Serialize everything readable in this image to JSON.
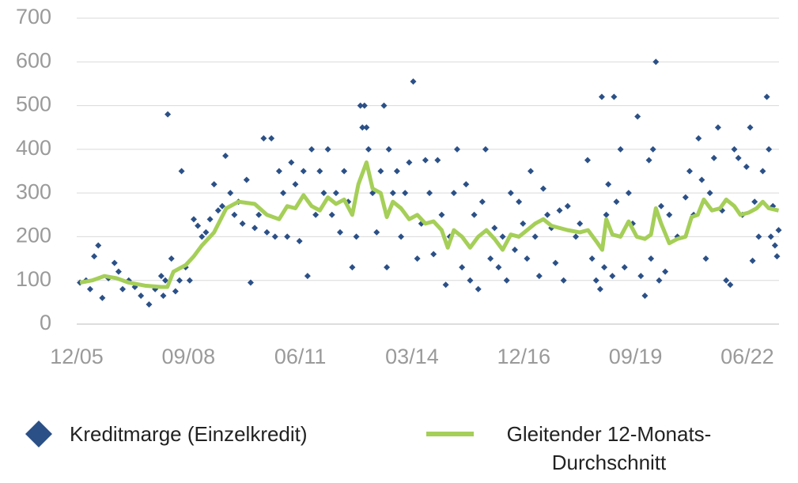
{
  "chart_data": {
    "type": "scatter",
    "series": [
      {
        "name": "Kreditmarge (Einzelkredit)",
        "type": "scatter",
        "color": "#2b5087",
        "x": [
          2006.0,
          2006.15,
          2006.25,
          2006.35,
          2006.45,
          2006.55,
          2006.7,
          2006.85,
          2006.95,
          2007.05,
          2007.2,
          2007.35,
          2007.5,
          2007.7,
          2007.85,
          2008.0,
          2008.05,
          2008.1,
          2008.16,
          2008.25,
          2008.35,
          2008.45,
          2008.5,
          2008.6,
          2008.7,
          2008.8,
          2008.9,
          2009.0,
          2009.1,
          2009.2,
          2009.3,
          2009.4,
          2009.5,
          2009.58,
          2009.7,
          2009.8,
          2009.9,
          2010.0,
          2010.1,
          2010.2,
          2010.3,
          2010.4,
          2010.52,
          2010.6,
          2010.71,
          2010.8,
          2010.9,
          2011.0,
          2011.1,
          2011.2,
          2011.3,
          2011.4,
          2011.5,
          2011.6,
          2011.7,
          2011.8,
          2011.9,
          2012.0,
          2012.1,
          2012.2,
          2012.3,
          2012.4,
          2012.5,
          2012.6,
          2012.7,
          2012.8,
          2012.9,
          2012.95,
          2013.0,
          2013.05,
          2013.1,
          2013.2,
          2013.3,
          2013.4,
          2013.48,
          2013.55,
          2013.6,
          2013.7,
          2013.8,
          2013.9,
          2014.0,
          2014.1,
          2014.2,
          2014.3,
          2014.4,
          2014.5,
          2014.6,
          2014.7,
          2014.8,
          2014.9,
          2015.0,
          2015.1,
          2015.2,
          2015.28,
          2015.4,
          2015.5,
          2015.6,
          2015.7,
          2015.8,
          2015.9,
          2015.98,
          2016.1,
          2016.2,
          2016.3,
          2016.4,
          2016.5,
          2016.6,
          2016.7,
          2016.8,
          2016.9,
          2017.0,
          2017.09,
          2017.2,
          2017.3,
          2017.4,
          2017.5,
          2017.6,
          2017.7,
          2017.8,
          2017.9,
          2018.0,
          2018.2,
          2018.3,
          2018.49,
          2018.6,
          2018.7,
          2018.8,
          2018.84,
          2018.9,
          2018.95,
          2019.0,
          2019.1,
          2019.14,
          2019.2,
          2019.3,
          2019.4,
          2019.5,
          2019.6,
          2019.72,
          2019.8,
          2019.9,
          2020.0,
          2020.05,
          2020.1,
          2020.17,
          2020.25,
          2020.3,
          2020.4,
          2020.5,
          2020.7,
          2020.9,
          2021.0,
          2021.1,
          2021.22,
          2021.3,
          2021.4,
          2021.5,
          2021.6,
          2021.7,
          2021.8,
          2021.9,
          2022.0,
          2022.1,
          2022.2,
          2022.3,
          2022.4,
          2022.49,
          2022.55,
          2022.6,
          2022.7,
          2022.8,
          2022.9,
          2022.95,
          2023.0,
          2023.05,
          2023.1,
          2023.15,
          2023.19
        ],
        "values": [
          95,
          100,
          80,
          155,
          180,
          60,
          105,
          140,
          120,
          80,
          100,
          85,
          65,
          45,
          80,
          110,
          65,
          100,
          480,
          150,
          75,
          100,
          350,
          130,
          100,
          240,
          225,
          200,
          210,
          240,
          320,
          260,
          270,
          385,
          300,
          250,
          280,
          230,
          330,
          95,
          220,
          250,
          425,
          210,
          425,
          200,
          350,
          300,
          200,
          370,
          320,
          190,
          350,
          110,
          400,
          250,
          350,
          300,
          400,
          250,
          300,
          210,
          350,
          280,
          130,
          200,
          500,
          450,
          500,
          450,
          400,
          300,
          210,
          350,
          500,
          130,
          400,
          300,
          350,
          200,
          300,
          370,
          555,
          150,
          230,
          375,
          300,
          160,
          375,
          250,
          90,
          200,
          300,
          400,
          130,
          320,
          100,
          250,
          80,
          280,
          400,
          150,
          220,
          130,
          200,
          100,
          300,
          170,
          280,
          230,
          150,
          350,
          200,
          110,
          310,
          250,
          220,
          140,
          260,
          100,
          270,
          200,
          230,
          375,
          150,
          100,
          80,
          520,
          130,
          250,
          320,
          110,
          520,
          280,
          400,
          130,
          300,
          230,
          475,
          110,
          65,
          375,
          150,
          400,
          600,
          100,
          270,
          120,
          250,
          200,
          290,
          350,
          250,
          425,
          330,
          150,
          300,
          380,
          450,
          260,
          100,
          90,
          400,
          380,
          250,
          360,
          450,
          145,
          280,
          200,
          350,
          520,
          400,
          200,
          270,
          180,
          155,
          215
        ]
      },
      {
        "name": "Gleitender 12-Monats-Durchschnitt",
        "type": "line",
        "color": "#a5cf58",
        "x": [
          2006.0,
          2006.3,
          2006.6,
          2006.9,
          2007.2,
          2007.6,
          2008.0,
          2008.15,
          2008.3,
          2008.6,
          2008.8,
          2009.0,
          2009.3,
          2009.6,
          2009.9,
          2010.3,
          2010.6,
          2010.9,
          2011.1,
          2011.3,
          2011.5,
          2011.7,
          2011.9,
          2012.1,
          2012.3,
          2012.5,
          2012.7,
          2012.85,
          2013.05,
          2013.2,
          2013.4,
          2013.55,
          2013.7,
          2013.9,
          2014.1,
          2014.3,
          2014.5,
          2014.7,
          2014.9,
          2015.05,
          2015.2,
          2015.4,
          2015.6,
          2015.8,
          2016.0,
          2016.2,
          2016.4,
          2016.6,
          2016.8,
          2017.0,
          2017.2,
          2017.4,
          2017.6,
          2017.8,
          2018.0,
          2018.3,
          2018.5,
          2018.7,
          2018.85,
          2018.95,
          2019.1,
          2019.3,
          2019.5,
          2019.7,
          2019.9,
          2020.05,
          2020.17,
          2020.3,
          2020.5,
          2020.7,
          2020.9,
          2021.05,
          2021.2,
          2021.35,
          2021.55,
          2021.75,
          2021.9,
          2022.1,
          2022.25,
          2022.45,
          2022.65,
          2022.8,
          2022.95,
          2023.19
        ],
        "values": [
          95,
          100,
          110,
          105,
          95,
          88,
          85,
          85,
          120,
          135,
          155,
          180,
          210,
          265,
          280,
          275,
          250,
          240,
          270,
          265,
          295,
          270,
          260,
          290,
          275,
          285,
          250,
          320,
          370,
          310,
          300,
          245,
          280,
          265,
          240,
          250,
          230,
          235,
          215,
          175,
          215,
          200,
          175,
          200,
          215,
          195,
          170,
          205,
          200,
          215,
          230,
          240,
          225,
          220,
          215,
          210,
          215,
          190,
          170,
          240,
          205,
          200,
          235,
          200,
          195,
          205,
          265,
          230,
          185,
          195,
          200,
          245,
          250,
          285,
          260,
          265,
          285,
          270,
          250,
          255,
          265,
          280,
          265,
          260
        ]
      }
    ],
    "xlim": [
      2005.92,
      2023.2
    ],
    "xticks": [
      {
        "value": 2005.92,
        "label": "12/05"
      },
      {
        "value": 2008.67,
        "label": "09/08"
      },
      {
        "value": 2011.42,
        "label": "06/11"
      },
      {
        "value": 2014.17,
        "label": "03/14"
      },
      {
        "value": 2016.92,
        "label": "12/16"
      },
      {
        "value": 2019.67,
        "label": "09/19"
      },
      {
        "value": 2022.42,
        "label": "06/22"
      }
    ],
    "ylim": [
      0,
      700
    ],
    "yticks": [
      0,
      100,
      200,
      300,
      400,
      500,
      600,
      700
    ],
    "grid": true
  }
}
